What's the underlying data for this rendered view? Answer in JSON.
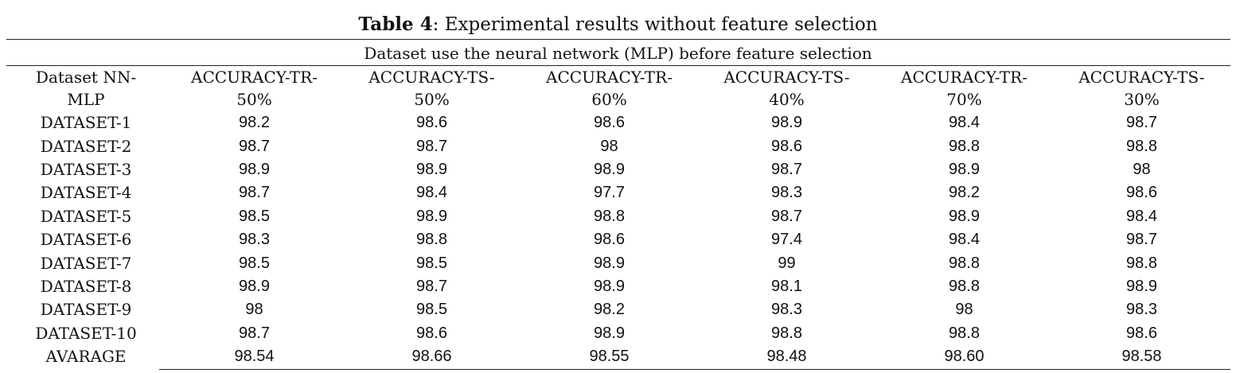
{
  "caption": {
    "label": "Table 4",
    "text": ": Experimental results without feature selection"
  },
  "subtitle": "Dataset use the neural network (MLP) before feature selection",
  "table": {
    "headers": [
      "Dataset NN-\nMLP",
      "ACCURACY-TR-\n50%",
      "ACCURACY-TS-\n50%",
      "ACCURACY-TR-\n60%",
      "ACCURACY-TS-\n40%",
      "ACCURACY-TR-\n70%",
      "ACCURACY-TS-\n30%"
    ],
    "rows": [
      [
        "DATASET-1",
        "98.2",
        "98.6",
        "98.6",
        "98.9",
        "98.4",
        "98.7"
      ],
      [
        "DATASET-2",
        "98.7",
        "98.7",
        "98",
        "98.6",
        "98.8",
        "98.8"
      ],
      [
        "DATASET-3",
        "98.9",
        "98.9",
        "98.9",
        "98.7",
        "98.9",
        "98"
      ],
      [
        "DATASET-4",
        "98.7",
        "98.4",
        "97.7",
        "98.3",
        "98.2",
        "98.6"
      ],
      [
        "DATASET-5",
        "98.5",
        "98.9",
        "98.8",
        "98.7",
        "98.9",
        "98.4"
      ],
      [
        "DATASET-6",
        "98.3",
        "98.8",
        "98.6",
        "97.4",
        "98.4",
        "98.7"
      ],
      [
        "DATASET-7",
        "98.5",
        "98.5",
        "98.9",
        "99",
        "98.8",
        "98.8"
      ],
      [
        "DATASET-8",
        "98.9",
        "98.7",
        "98.9",
        "98.1",
        "98.8",
        "98.9"
      ],
      [
        "DATASET-9",
        "98",
        "98.5",
        "98.2",
        "98.3",
        "98",
        "98.3"
      ],
      [
        "DATASET-10",
        "98.7",
        "98.6",
        "98.9",
        "98.8",
        "98.8",
        "98.6"
      ],
      [
        "AVARAGE",
        "98.54",
        "98.66",
        "98.55",
        "98.48",
        "98.60",
        "98.58"
      ]
    ]
  }
}
